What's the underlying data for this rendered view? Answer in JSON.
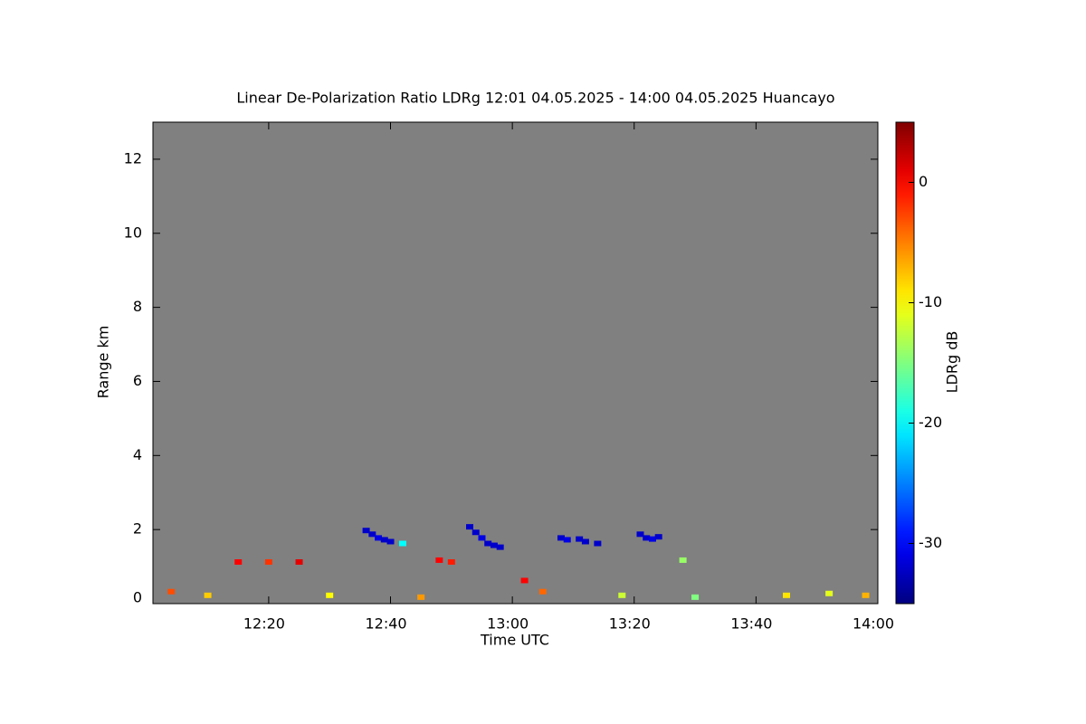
{
  "chart_data": {
    "type": "heatmap",
    "title": "Linear De-Polarization Ratio LDRg   12:01 04.05.2025 - 14:00 04.05.2025 Huancayo",
    "x_label": "Time UTC",
    "y_label": "Range km",
    "colorbar_label": "LDRg dB",
    "xlim": [
      "12:01",
      "14:00"
    ],
    "xticks": [
      "12:20",
      "12:40",
      "13:00",
      "13:20",
      "13:40",
      "14:00"
    ],
    "ylim": [
      0,
      13
    ],
    "yticks": [
      0,
      2,
      4,
      6,
      8,
      10,
      12
    ],
    "zlim": [
      -35,
      5
    ],
    "zticks": [
      0,
      -10,
      -20,
      -30
    ],
    "background": "#808080",
    "x": [
      "12:36",
      "12:37",
      "12:38",
      "12:39",
      "12:40",
      "12:53",
      "12:54",
      "12:55",
      "12:56",
      "12:57",
      "12:58",
      "13:08",
      "13:09",
      "13:11",
      "13:12",
      "13:14",
      "13:21",
      "13:22",
      "13:23",
      "13:24",
      "12:15",
      "12:20",
      "12:25",
      "12:48",
      "12:50",
      "13:02",
      "12:04",
      "12:10",
      "12:30",
      "12:45",
      "13:05",
      "13:18",
      "13:30",
      "13:45",
      "13:52",
      "13:58",
      "12:42",
      "13:28"
    ],
    "y": [
      1.95,
      1.85,
      1.75,
      1.7,
      1.65,
      2.05,
      1.9,
      1.75,
      1.6,
      1.55,
      1.5,
      1.75,
      1.7,
      1.72,
      1.65,
      1.6,
      1.85,
      1.75,
      1.72,
      1.78,
      1.1,
      1.1,
      1.1,
      1.15,
      1.1,
      0.6,
      0.3,
      0.2,
      0.2,
      0.15,
      0.3,
      0.2,
      0.15,
      0.2,
      0.25,
      0.2,
      1.6,
      1.15
    ],
    "values": [
      -32,
      -32,
      -31,
      -32,
      -32,
      -32,
      -32,
      -31,
      -32,
      -32,
      -32,
      -32,
      -31,
      -32,
      -32,
      -32,
      -32,
      -32,
      -31,
      -32,
      0,
      -2,
      1,
      0,
      -1,
      0,
      -3,
      -8,
      -10,
      -6,
      -4,
      -12,
      -15,
      -9,
      -11,
      -7,
      -20,
      -14
    ],
    "grid": false
  }
}
